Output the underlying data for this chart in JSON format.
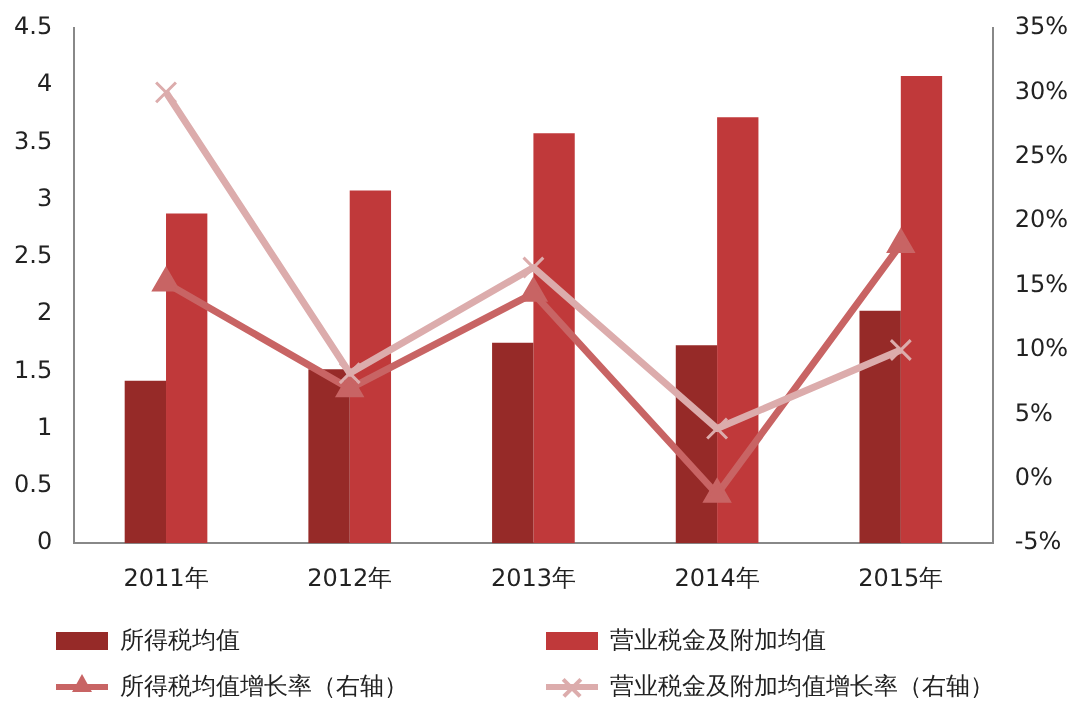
{
  "chart_data": {
    "type": "bar",
    "categories": [
      "2011年",
      "2012年",
      "2013年",
      "2014年",
      "2015年"
    ],
    "series": [
      {
        "name": "所得税均值",
        "color": "#962a28",
        "values": [
          1.42,
          1.52,
          1.75,
          1.73,
          2.03
        ]
      },
      {
        "name": "营业税金及附加均值",
        "color": "#c0393a",
        "values": [
          2.88,
          3.08,
          3.58,
          3.72,
          4.08
        ]
      },
      {
        "name": "所得税均值增长率（右轴）",
        "type": "line",
        "axis": "y2",
        "marker": "triangle",
        "color": "#c86464",
        "values": [
          15.2,
          7.0,
          14.4,
          -1.2,
          18.2
        ]
      },
      {
        "name": "营业税金及附加均值增长率（右轴）",
        "type": "line",
        "axis": "y2",
        "marker": "cross",
        "color": "#dcacac",
        "values": [
          30,
          8.2,
          16.4,
          3.9,
          10
        ]
      }
    ],
    "ylim": [
      0,
      4.5
    ],
    "yticks": [
      0,
      0.5,
      1,
      1.5,
      2,
      2.5,
      3,
      3.5,
      4,
      4.5
    ],
    "y2lim": [
      -5,
      35
    ],
    "y2ticks": [
      {
        "value": -5,
        "label": "-5%"
      },
      {
        "value": 0,
        "label": "0%"
      },
      {
        "value": 5,
        "label": "5%"
      },
      {
        "value": 10,
        "label": "10%"
      },
      {
        "value": 15,
        "label": "15%"
      },
      {
        "value": 20,
        "label": "20%"
      },
      {
        "value": 25,
        "label": "25%"
      },
      {
        "value": 30,
        "label": "30%"
      },
      {
        "value": 35,
        "label": "35%"
      }
    ],
    "grid": false,
    "legend": "bottom"
  }
}
